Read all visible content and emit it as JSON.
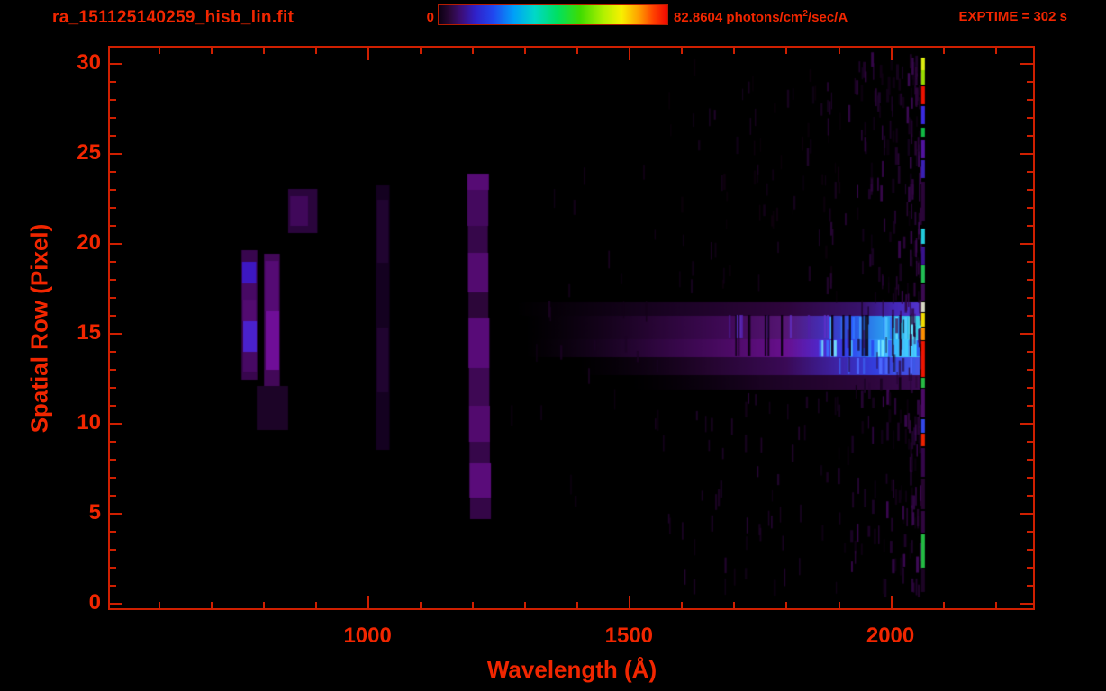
{
  "header": {
    "title": "ra_151125140259_hisb_lin.fit",
    "exptime": "EXPTIME = 302 s"
  },
  "chart_data": {
    "type": "heatmap",
    "title": "ra_151125140259_hisb_lin.fit",
    "xlabel": "Wavelength (Å)",
    "ylabel": "Spatial Row (Pixel)",
    "exposure_seconds": 302,
    "x_axis": {
      "min": 507,
      "max": 2273,
      "unit": "Angstrom",
      "major_ticks": [
        1000,
        1500,
        2000
      ],
      "minor_step": 100,
      "minor_first": 600,
      "minor_last": 2200
    },
    "y_axis": {
      "min": -0.3,
      "max": 30.85,
      "major_ticks": [
        0,
        5,
        10,
        15,
        20,
        25,
        30
      ],
      "minor_step": 1
    },
    "colorbar": {
      "min_label": "0",
      "max_value": "82.8604",
      "unit_prefix": " photons/cm",
      "unit_sup": "2",
      "unit_suffix": "/sec/A",
      "stops": [
        [
          "#0a0010",
          0
        ],
        [
          "#2a0838",
          0.05
        ],
        [
          "#3c0e78",
          0.1
        ],
        [
          "#3020c8",
          0.16
        ],
        [
          "#2048f0",
          0.24
        ],
        [
          "#00a0f8",
          0.33
        ],
        [
          "#00d8c8",
          0.42
        ],
        [
          "#00e060",
          0.52
        ],
        [
          "#40dc00",
          0.62
        ],
        [
          "#b0f000",
          0.72
        ],
        [
          "#f8f000",
          0.8
        ],
        [
          "#ff9800",
          0.88
        ],
        [
          "#ff4000",
          0.94
        ],
        [
          "#f00800",
          1
        ]
      ]
    },
    "image": {
      "bands": [
        {
          "r": [
            15.95,
            16.7
          ],
          "stops": [
            [
              1280,
              "rgba(26,3,34,0)"
            ],
            [
              1600,
              "#1c0326"
            ],
            [
              1800,
              "#2e053c"
            ],
            [
              1950,
              "#38136e"
            ],
            [
              2010,
              "#4428b8"
            ],
            [
              2056,
              "#5234cc"
            ]
          ]
        },
        {
          "r": [
            14.65,
            15.95
          ],
          "stops": [
            [
              1300,
              "rgba(26,3,34,0)"
            ],
            [
              1550,
              "#280535"
            ],
            [
              1700,
              "#420a5a"
            ],
            [
              1800,
              "#561674"
            ],
            [
              1870,
              "#442eb6"
            ],
            [
              1930,
              "#2a56e6"
            ],
            [
              1990,
              "#2a9eee"
            ],
            [
              2056,
              "#38d4e6"
            ]
          ]
        },
        {
          "r": [
            13.65,
            14.65
          ],
          "stops": [
            [
              1300,
              "rgba(30,4,40,0)"
            ],
            [
              1550,
              "#2e063e"
            ],
            [
              1700,
              "#4e0b68"
            ],
            [
              1800,
              "#68108e"
            ],
            [
              1870,
              "#4e28ce"
            ],
            [
              1925,
              "#3046ee"
            ],
            [
              1985,
              "#30a6fe"
            ],
            [
              2056,
              "#46defe"
            ]
          ]
        },
        {
          "r": [
            12.65,
            13.65
          ],
          "stops": [
            [
              1400,
              "rgba(18,2,24,0)"
            ],
            [
              1650,
              "#24052e"
            ],
            [
              1800,
              "#3a0a56"
            ],
            [
              1900,
              "#3e23a6"
            ],
            [
              1970,
              "#333ede"
            ],
            [
              2056,
              "#4656e6"
            ]
          ]
        },
        {
          "r": [
            11.85,
            12.65
          ],
          "stops": [
            [
              1500,
              "rgba(14,1,18,0)"
            ],
            [
              1750,
              "#1a0322"
            ],
            [
              1950,
              "#2c063a"
            ],
            [
              2056,
              "#3a0a50"
            ]
          ]
        }
      ],
      "features": [
        [
          759,
          789,
          12.4,
          19.6,
          "#38064e"
        ],
        [
          760,
          787,
          17.75,
          18.95,
          "#3d17c2"
        ],
        [
          760,
          787,
          16.85,
          17.75,
          "#470964"
        ],
        [
          761,
          787,
          15.65,
          16.85,
          "#520b70"
        ],
        [
          762,
          788,
          13.95,
          15.65,
          "#4a21cc"
        ],
        [
          762,
          788,
          12.85,
          13.95,
          "#470964"
        ],
        [
          802,
          832,
          11.4,
          19.4,
          "#420858"
        ],
        [
          804,
          830,
          16.2,
          19.0,
          "#550b74"
        ],
        [
          805,
          831,
          12.95,
          16.2,
          "#6f0e98"
        ],
        [
          848,
          904,
          20.55,
          23.0,
          "#2a053c"
        ],
        [
          852,
          886,
          20.95,
          22.6,
          "#40085a"
        ],
        [
          788,
          848,
          9.6,
          12.05,
          "#1c0427"
        ],
        [
          1016,
          1042,
          8.5,
          23.2,
          "#140120"
        ],
        [
          1018,
          1040,
          18.9,
          22.4,
          "#200430"
        ],
        [
          1018,
          1040,
          11.7,
          15.3,
          "#200430"
        ],
        [
          1191,
          1232,
          22.95,
          23.85,
          "#560b74"
        ],
        [
          1191,
          1231,
          20.95,
          22.95,
          "#44095e"
        ],
        [
          1192,
          1230,
          19.45,
          20.95,
          "#36074a"
        ],
        [
          1192,
          1231,
          17.25,
          19.45,
          "#530b70"
        ],
        [
          1193,
          1231,
          15.85,
          17.25,
          "#2c0639"
        ],
        [
          1193,
          1233,
          13.05,
          15.85,
          "#580b78"
        ],
        [
          1194,
          1233,
          10.95,
          13.05,
          "#3e0854"
        ],
        [
          1194,
          1234,
          8.95,
          10.95,
          "#520a6e"
        ],
        [
          1195,
          1234,
          7.75,
          8.95,
          "#36074a"
        ],
        [
          1195,
          1236,
          5.85,
          7.75,
          "#5a0c7a"
        ],
        [
          1196,
          1236,
          4.65,
          5.85,
          "#340647"
        ]
      ],
      "stripes": [
        {
          "l0": 1880,
          "l1": 2056,
          "r0": 14.65,
          "r1": 15.9,
          "n": 22,
          "w0": 1.5,
          "w1": 3.5,
          "h0": -1,
          "h1": -1,
          "bias": 0.8,
          "seed": 11,
          "colors": [
            "#55ccff",
            "#2b5bff",
            "#6ae8ff",
            "#3377ff"
          ]
        },
        {
          "l0": 1860,
          "l1": 2056,
          "r0": 13.68,
          "r1": 14.6,
          "n": 24,
          "w0": 1.5,
          "w1": 3.5,
          "h0": -1,
          "h1": -1,
          "bias": 0.8,
          "seed": 12,
          "colors": [
            "#49bcff",
            "#2a48ee",
            "#79eeff",
            "#3b6bff"
          ]
        },
        {
          "l0": 1900,
          "l1": 2056,
          "r0": 12.7,
          "r1": 13.6,
          "n": 12,
          "w0": 1.5,
          "w1": 3.0,
          "h0": -1,
          "h1": -1,
          "bias": 0.9,
          "seed": 13,
          "colors": [
            "#3a58e8",
            "#4e6bff"
          ]
        },
        {
          "l0": 1690,
          "l1": 1880,
          "r0": 14.7,
          "r1": 16.0,
          "n": 10,
          "w0": 1.5,
          "w1": 3.0,
          "h0": -1,
          "h1": -1,
          "bias": 1,
          "seed": 14,
          "colors": [
            "#6030c8",
            "#501fa8"
          ]
        },
        {
          "l0": 1700,
          "l1": 2040,
          "r0": 13.7,
          "r1": 16.0,
          "n": 16,
          "w0": 1.2,
          "w1": 2.5,
          "h0": -1,
          "h1": -1,
          "bias": 1,
          "seed": 15,
          "colors": [
            "#0a0110"
          ]
        },
        {
          "l0": 1902,
          "l1": 2057,
          "r0": 0.3,
          "r1": 30.6,
          "n": 240,
          "w0": 1.2,
          "w1": 3.2,
          "h0": 0.55,
          "h1": 1.05,
          "bias": 0.55,
          "seed": 21,
          "colors": [
            "#2a0538",
            "#3a0750",
            "#1e042a",
            "#120117"
          ]
        },
        {
          "l0": 1560,
          "l1": 1902,
          "r0": 16.6,
          "r1": 30.3,
          "n": 80,
          "w0": 1.0,
          "w1": 2.6,
          "h0": 0.5,
          "h1": 1.0,
          "bias": 0.75,
          "seed": 22,
          "colors": [
            "#1a0322",
            "#260533",
            "#10010f"
          ]
        },
        {
          "l0": 1560,
          "l1": 1902,
          "r0": 0.4,
          "r1": 11.85,
          "n": 60,
          "w0": 1.0,
          "w1": 2.6,
          "h0": 0.5,
          "h1": 1.0,
          "bias": 0.75,
          "seed": 23,
          "colors": [
            "#1a0322",
            "#260533"
          ]
        },
        {
          "l0": 1245,
          "l1": 1560,
          "r0": 4.5,
          "r1": 24.5,
          "n": 26,
          "w0": 1.0,
          "w1": 2.4,
          "h0": 0.5,
          "h1": 1.2,
          "bias": 1,
          "seed": 24,
          "colors": [
            "#130218",
            "#1b0323"
          ]
        },
        {
          "l0": 2030,
          "l1": 2057,
          "r0": 0.3,
          "r1": 30.5,
          "n": 60,
          "w0": 1.5,
          "w1": 3.0,
          "h0": 0.6,
          "h1": 1.0,
          "bias": 0.8,
          "seed": 25,
          "colors": [
            "#3e0a56",
            "#2c0638"
          ]
        }
      ],
      "line": {
        "l0": 2059,
        "l1": 2066,
        "segs": [
          [
            29.6,
            30.3,
            "#ddee11"
          ],
          [
            28.8,
            29.6,
            "#99dd00"
          ],
          [
            27.7,
            28.7,
            "#ee1200"
          ],
          [
            26.6,
            27.6,
            "#3a2ae0"
          ],
          [
            25.9,
            26.4,
            "#11b944"
          ],
          [
            24.7,
            25.7,
            "#50139e"
          ],
          [
            23.6,
            24.6,
            "#3a20b4"
          ],
          [
            21.2,
            23.4,
            "#2a0538"
          ],
          [
            19.95,
            20.8,
            "#22ccdd"
          ],
          [
            18.8,
            19.8,
            "#38128c"
          ],
          [
            17.8,
            18.75,
            "#22c055"
          ],
          [
            16.8,
            17.7,
            "#3c0a52"
          ],
          [
            16.15,
            16.7,
            "#d8d8c4"
          ],
          [
            15.35,
            16.1,
            "#f2de00"
          ],
          [
            14.6,
            15.3,
            "#ff9100"
          ],
          [
            12.55,
            14.55,
            "#ee1500"
          ],
          [
            11.95,
            12.5,
            "#28bb44"
          ],
          [
            10.3,
            11.9,
            "#4c0b66"
          ],
          [
            9.45,
            10.2,
            "#3348ea"
          ],
          [
            8.7,
            9.4,
            "#ee2200"
          ],
          [
            7.0,
            8.6,
            "#34064a"
          ],
          [
            5.2,
            6.9,
            "#26052f"
          ],
          [
            3.9,
            5.1,
            "#30063f"
          ],
          [
            1.95,
            3.8,
            "#24bb44"
          ],
          [
            0.6,
            1.9,
            "#1c0425"
          ]
        ]
      }
    }
  },
  "colors": {
    "background": "#000000",
    "text": "#f12600",
    "axis": "#cf1f00"
  }
}
